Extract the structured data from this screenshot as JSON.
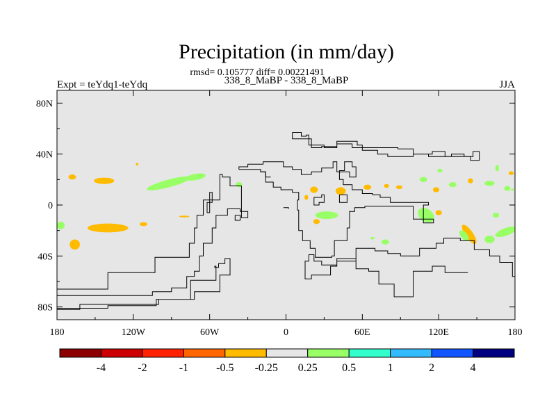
{
  "chart_data": {
    "type": "heatmap",
    "title": "Precipitation (in mm/day)",
    "subtitle": "rmsd= 0.105777 diff= 0.00221491",
    "case_label": "338_8_MaBP - 338_8_MaBP",
    "left_label": "Expt = teYdq1-teYdq",
    "right_label": "JJA",
    "xlim": [
      -180,
      180
    ],
    "ylim": [
      -90,
      90
    ],
    "x_ticks": [
      {
        "value": -180,
        "label": "180"
      },
      {
        "value": -120,
        "label": "120W"
      },
      {
        "value": -60,
        "label": "60W"
      },
      {
        "value": 0,
        "label": "0"
      },
      {
        "value": 60,
        "label": "60E"
      },
      {
        "value": 120,
        "label": "120E"
      },
      {
        "value": 180,
        "label": "180"
      }
    ],
    "y_ticks": [
      {
        "value": 80,
        "label": "80N"
      },
      {
        "value": 40,
        "label": "40N"
      },
      {
        "value": 0,
        "label": "0"
      },
      {
        "value": -40,
        "label": "40S"
      },
      {
        "value": -80,
        "label": "80S"
      }
    ],
    "colorbar": {
      "colors": [
        "#8b0000",
        "#cc0000",
        "#ff2200",
        "#ff6600",
        "#ffbb00",
        "#e6e6e6",
        "#99ff66",
        "#33ffcc",
        "#33bbff",
        "#1155ff",
        "#000080"
      ],
      "labels": [
        "-4",
        "-2",
        "-1",
        "-0.5",
        "-0.25",
        "0.25",
        "0.5",
        "1",
        "2",
        "4"
      ]
    },
    "background_color": "#e6e6e6",
    "anomalies": [
      {
        "lon": -143,
        "lat": 19,
        "rx": 8,
        "ry": 2.5,
        "color": "#ffbb00"
      },
      {
        "lon": -168,
        "lat": 22,
        "rx": 3,
        "ry": 2,
        "color": "#ffbb00"
      },
      {
        "lon": -177,
        "lat": -16,
        "rx": 3,
        "ry": 3,
        "color": "#99ff66"
      },
      {
        "lon": -166,
        "lat": -31,
        "rx": 4,
        "ry": 4,
        "color": "#ffbb00"
      },
      {
        "lon": -140,
        "lat": -18,
        "rx": 16,
        "ry": 3.5,
        "color": "#ffbb00"
      },
      {
        "lon": -112,
        "lat": -15,
        "rx": 3,
        "ry": 1.5,
        "color": "#ffbb00"
      },
      {
        "lon": -117,
        "lat": 32,
        "rx": 1,
        "ry": 1,
        "color": "#ffbb00"
      },
      {
        "lon": -92,
        "lat": 17,
        "rx": 18,
        "ry": 3,
        "color": "#99ff66",
        "rot": -15
      },
      {
        "lon": -71,
        "lat": 22,
        "rx": 8,
        "ry": 2.5,
        "color": "#99ff66",
        "rot": -10
      },
      {
        "lon": -80,
        "lat": -9,
        "rx": 4,
        "ry": 0.7,
        "color": "#ffbb00"
      },
      {
        "lon": -37,
        "lat": 16,
        "rx": 2.5,
        "ry": 2,
        "color": "#99ff66"
      },
      {
        "lon": 22,
        "lat": 12,
        "rx": 3,
        "ry": 2.5,
        "color": "#ffbb00"
      },
      {
        "lon": 43,
        "lat": 11,
        "rx": 4,
        "ry": 3,
        "color": "#ffbb00"
      },
      {
        "lon": 64,
        "lat": 14,
        "rx": 3,
        "ry": 2,
        "color": "#ffbb00"
      },
      {
        "lon": 79,
        "lat": 15,
        "rx": 2,
        "ry": 1.5,
        "color": "#ffbb00"
      },
      {
        "lon": 89,
        "lat": 14,
        "rx": 2.5,
        "ry": 1.5,
        "color": "#ffbb00"
      },
      {
        "lon": 108,
        "lat": 20,
        "rx": 3,
        "ry": 2,
        "color": "#99ff66"
      },
      {
        "lon": 118,
        "lat": 12,
        "rx": 2.5,
        "ry": 2,
        "color": "#ffbb00"
      },
      {
        "lon": 131,
        "lat": 16,
        "rx": 3,
        "ry": 2,
        "color": "#99ff66"
      },
      {
        "lon": 145,
        "lat": 19,
        "rx": 2,
        "ry": 2,
        "color": "#ffbb00"
      },
      {
        "lon": 160,
        "lat": 17,
        "rx": 4,
        "ry": 2,
        "color": "#99ff66"
      },
      {
        "lon": 174,
        "lat": 13,
        "rx": 2.5,
        "ry": 2,
        "color": "#99ff66"
      },
      {
        "lon": 177,
        "lat": 25,
        "rx": 2,
        "ry": 1.5,
        "color": "#ffbb00"
      },
      {
        "lon": 121,
        "lat": 27,
        "rx": 2,
        "ry": 1.5,
        "color": "#99ff66"
      },
      {
        "lon": 166,
        "lat": 29,
        "rx": 1.5,
        "ry": 2.5,
        "color": "#99ff66"
      },
      {
        "lon": 178,
        "lat": 12,
        "rx": 1,
        "ry": 1,
        "color": "#99ff66"
      },
      {
        "lon": 16,
        "lat": 6,
        "rx": 1.5,
        "ry": 2,
        "color": "#ffbb00"
      },
      {
        "lon": 32,
        "lat": -8,
        "rx": 9,
        "ry": 3,
        "color": "#99ff66"
      },
      {
        "lon": 24,
        "lat": -13,
        "rx": 2.5,
        "ry": 2,
        "color": "#ffbb00"
      },
      {
        "lon": 110,
        "lat": -8,
        "rx": 7,
        "ry": 5,
        "color": "#99ff66",
        "rot": 35
      },
      {
        "lon": 120,
        "lat": -6,
        "rx": 2.5,
        "ry": 2,
        "color": "#ffbb00"
      },
      {
        "lon": 144,
        "lat": -23,
        "rx": 9,
        "ry": 3,
        "color": "#ffbb00",
        "rot": 55
      },
      {
        "lon": 140,
        "lat": -24,
        "rx": 5,
        "ry": 2.5,
        "color": "#99ff66",
        "rot": 50
      },
      {
        "lon": 160,
        "lat": -27,
        "rx": 4,
        "ry": 3,
        "color": "#99ff66"
      },
      {
        "lon": 173,
        "lat": -21,
        "rx": 9,
        "ry": 3,
        "color": "#99ff66",
        "rot": -20
      },
      {
        "lon": 165,
        "lat": -8,
        "rx": 2.5,
        "ry": 2,
        "color": "#99ff66"
      },
      {
        "lon": 78,
        "lat": -29,
        "rx": 3,
        "ry": 2,
        "color": "#99ff66"
      },
      {
        "lon": 68,
        "lat": -26,
        "rx": 1.5,
        "ry": 1,
        "color": "#99ff66"
      }
    ],
    "coastlines": [
      [
        [
          -180,
          -71
        ],
        [
          -120,
          -71
        ],
        [
          -105,
          -68
        ],
        [
          -90,
          -65
        ],
        [
          -78,
          -56
        ],
        [
          -72,
          -52
        ],
        [
          -68,
          -40
        ],
        [
          -65,
          -30
        ],
        [
          -58,
          -18
        ],
        [
          -55,
          -8
        ],
        [
          -46,
          -3
        ],
        [
          -36,
          -5
        ],
        [
          -30,
          -10
        ],
        [
          -35,
          15
        ],
        [
          -44,
          22
        ],
        [
          -50,
          24
        ],
        [
          -52,
          4
        ],
        [
          -60,
          -6
        ],
        [
          -62,
          2
        ],
        [
          -58,
          10
        ],
        [
          -60,
          4
        ],
        [
          -65,
          -8
        ],
        [
          -70,
          -18
        ],
        [
          -72,
          -30
        ],
        [
          -76,
          -41
        ],
        [
          -103,
          -53
        ],
        [
          -140,
          -66
        ],
        [
          -180,
          -78
        ]
      ],
      [
        [
          -180,
          -82
        ],
        [
          -162,
          -82
        ],
        [
          -162,
          -78
        ],
        [
          -128,
          -78
        ],
        [
          -100,
          -74
        ],
        [
          -72,
          -68
        ],
        [
          -52,
          -55
        ],
        [
          -44,
          -42
        ],
        [
          -48,
          -46
        ],
        [
          -53,
          -49
        ],
        [
          -56,
          -48
        ],
        [
          -55,
          -59
        ],
        [
          -75,
          -74
        ],
        [
          -102,
          -79
        ],
        [
          -140,
          -81
        ],
        [
          -180,
          -84
        ]
      ],
      [
        [
          -37,
          28
        ],
        [
          -20,
          26
        ],
        [
          -16,
          18
        ],
        [
          -10,
          14
        ],
        [
          -4,
          12
        ],
        [
          5,
          10
        ],
        [
          10,
          4
        ],
        [
          9,
          -4
        ],
        [
          10,
          -20
        ],
        [
          13,
          -28
        ],
        [
          19,
          -34
        ],
        [
          23,
          -41
        ],
        [
          36,
          -40
        ],
        [
          38,
          -28
        ],
        [
          48,
          -18
        ],
        [
          50,
          -5
        ],
        [
          54,
          -2
        ],
        [
          60,
          -2
        ],
        [
          62,
          -1
        ],
        [
          100,
          -3
        ],
        [
          100,
          -11
        ],
        [
          116,
          -14
        ],
        [
          108,
          0
        ],
        [
          112,
          2
        ],
        [
          82,
          6
        ],
        [
          74,
          8
        ],
        [
          68,
          9
        ],
        [
          60,
          12
        ],
        [
          52,
          16
        ],
        [
          45,
          20
        ],
        [
          42,
          27
        ],
        [
          46,
          34
        ],
        [
          52,
          30
        ],
        [
          55,
          22
        ],
        [
          50,
          26
        ],
        [
          40,
          34
        ],
        [
          37,
          29
        ],
        [
          28,
          26
        ],
        [
          20,
          24
        ],
        [
          12,
          28
        ],
        [
          5,
          30
        ],
        [
          -2,
          34
        ],
        [
          -10,
          34
        ],
        [
          -18,
          32
        ],
        [
          -30,
          30
        ],
        [
          -37,
          28
        ]
      ],
      [
        [
          5,
          57
        ],
        [
          10,
          57
        ],
        [
          12,
          54
        ],
        [
          16,
          55
        ],
        [
          18,
          47
        ],
        [
          30,
          45
        ],
        [
          40,
          50
        ],
        [
          56,
          47
        ],
        [
          60,
          43
        ],
        [
          72,
          40
        ],
        [
          80,
          38
        ],
        [
          90,
          38
        ],
        [
          100,
          40
        ],
        [
          112,
          38
        ],
        [
          120,
          38
        ],
        [
          130,
          40
        ],
        [
          140,
          38
        ],
        [
          145,
          35
        ],
        [
          152,
          42
        ],
        [
          147,
          38
        ],
        [
          135,
          38
        ],
        [
          125,
          42
        ],
        [
          115,
          40
        ],
        [
          100,
          44
        ],
        [
          88,
          45
        ],
        [
          70,
          45
        ],
        [
          52,
          48
        ],
        [
          40,
          46
        ],
        [
          28,
          45
        ],
        [
          20,
          52
        ],
        [
          8,
          52
        ],
        [
          5,
          57
        ]
      ],
      [
        [
          143,
          -53
        ],
        [
          125,
          -48
        ],
        [
          115,
          -52
        ],
        [
          100,
          -62
        ],
        [
          100,
          -72
        ],
        [
          85,
          -72
        ],
        [
          85,
          -62
        ],
        [
          73,
          -52
        ],
        [
          65,
          -50
        ],
        [
          55,
          -42
        ],
        [
          40,
          -48
        ],
        [
          35,
          -55
        ],
        [
          20,
          -58
        ],
        [
          15,
          -44
        ],
        [
          18,
          -39
        ],
        [
          22,
          -44
        ],
        [
          28,
          -47
        ],
        [
          40,
          -44
        ],
        [
          55,
          -34
        ],
        [
          70,
          -36
        ],
        [
          80,
          -38
        ],
        [
          90,
          -40
        ],
        [
          105,
          -34
        ],
        [
          118,
          -30
        ],
        [
          124,
          -26
        ],
        [
          137,
          -28
        ],
        [
          148,
          -35
        ],
        [
          160,
          -40
        ],
        [
          168,
          -45
        ],
        [
          178,
          -56
        ],
        [
          180,
          -65
        ]
      ],
      [
        [
          22,
          6
        ],
        [
          28,
          8
        ],
        [
          30,
          2
        ],
        [
          26,
          0
        ],
        [
          22,
          6
        ]
      ],
      [
        [
          42,
          8
        ],
        [
          48,
          8
        ],
        [
          48,
          2
        ],
        [
          42,
          4
        ],
        [
          42,
          8
        ]
      ],
      [
        [
          -40,
          -8
        ],
        [
          -36,
          -8
        ],
        [
          -36,
          -12
        ],
        [
          -40,
          -12
        ],
        [
          -40,
          -8
        ]
      ],
      [
        [
          -20,
          26
        ],
        [
          -16,
          22
        ],
        [
          -12,
          22
        ]
      ],
      [
        [
          -2,
          -2
        ],
        [
          2,
          -3
        ]
      ]
    ]
  }
}
